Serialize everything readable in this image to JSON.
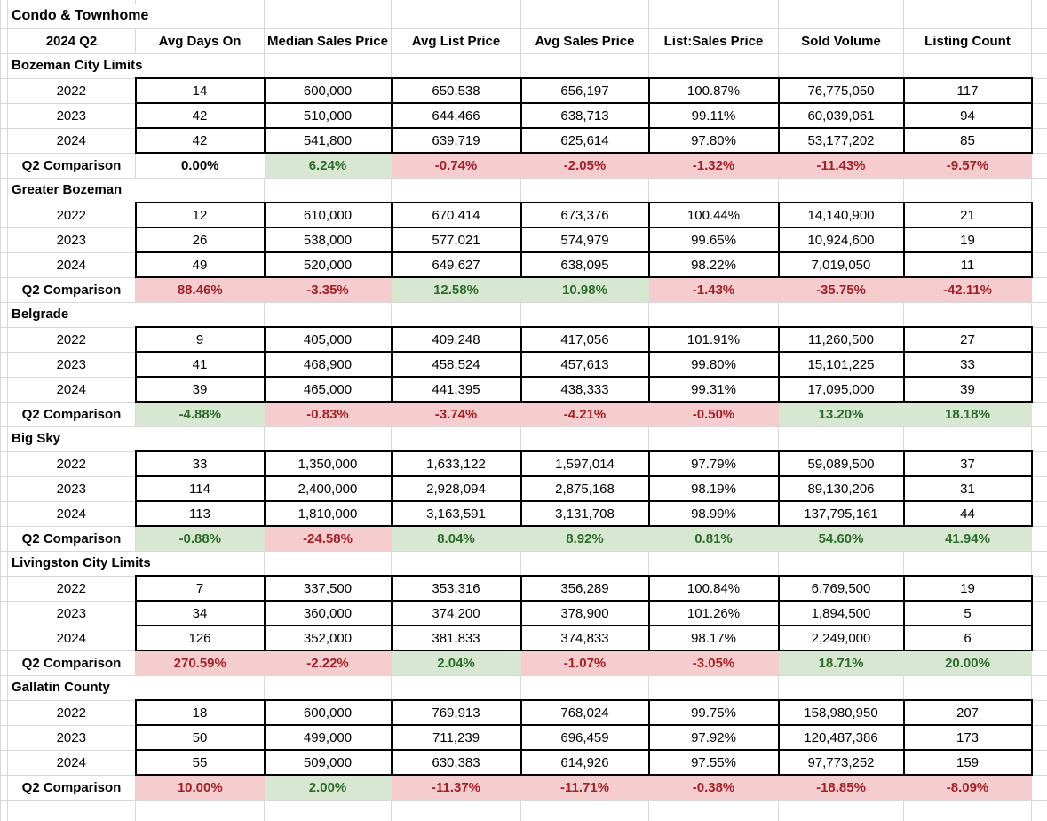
{
  "table": {
    "title": "Condo & Townhome",
    "period_label": "2024 Q2",
    "comparison_label": "Q2 Comparison",
    "columns": [
      "Avg Days On",
      "Median Sales Price",
      "Avg List Price",
      "Avg Sales Price",
      "List:Sales Price",
      "Sold Volume",
      "Listing Count"
    ],
    "colors": {
      "grid": "#d8d8d8",
      "box_border": "#000000",
      "good_bg": "#d7e7d1",
      "good_text": "#2e6b2e",
      "bad_bg": "#f6cdce",
      "bad_text": "#a32126"
    },
    "sections": [
      {
        "name": "Bozeman City Limits",
        "rows": [
          {
            "year": "2022",
            "values": [
              "14",
              "600,000",
              "650,538",
              "656,197",
              "100.87%",
              "76,775,050",
              "117"
            ]
          },
          {
            "year": "2023",
            "values": [
              "42",
              "510,000",
              "644,466",
              "638,713",
              "99.11%",
              "60,039,061",
              "94"
            ]
          },
          {
            "year": "2024",
            "values": [
              "42",
              "541,800",
              "639,719",
              "625,614",
              "97.80%",
              "53,177,202",
              "85"
            ]
          }
        ],
        "comparison": [
          {
            "value": "0.00%",
            "status": "neutral"
          },
          {
            "value": "6.24%",
            "status": "good"
          },
          {
            "value": "-0.74%",
            "status": "bad"
          },
          {
            "value": "-2.05%",
            "status": "bad"
          },
          {
            "value": "-1.32%",
            "status": "bad"
          },
          {
            "value": "-11.43%",
            "status": "bad"
          },
          {
            "value": "-9.57%",
            "status": "bad"
          }
        ]
      },
      {
        "name": "Greater Bozeman",
        "rows": [
          {
            "year": "2022",
            "values": [
              "12",
              "610,000",
              "670,414",
              "673,376",
              "100.44%",
              "14,140,900",
              "21"
            ]
          },
          {
            "year": "2023",
            "values": [
              "26",
              "538,000",
              "577,021",
              "574,979",
              "99.65%",
              "10,924,600",
              "19"
            ]
          },
          {
            "year": "2024",
            "values": [
              "49",
              "520,000",
              "649,627",
              "638,095",
              "98.22%",
              "7,019,050",
              "11"
            ]
          }
        ],
        "comparison": [
          {
            "value": "88.46%",
            "status": "bad"
          },
          {
            "value": "-3.35%",
            "status": "bad"
          },
          {
            "value": "12.58%",
            "status": "good"
          },
          {
            "value": "10.98%",
            "status": "good"
          },
          {
            "value": "-1.43%",
            "status": "bad"
          },
          {
            "value": "-35.75%",
            "status": "bad"
          },
          {
            "value": "-42.11%",
            "status": "bad"
          }
        ]
      },
      {
        "name": "Belgrade",
        "rows": [
          {
            "year": "2022",
            "values": [
              "9",
              "405,000",
              "409,248",
              "417,056",
              "101.91%",
              "11,260,500",
              "27"
            ]
          },
          {
            "year": "2023",
            "values": [
              "41",
              "468,900",
              "458,524",
              "457,613",
              "99.80%",
              "15,101,225",
              "33"
            ]
          },
          {
            "year": "2024",
            "values": [
              "39",
              "465,000",
              "441,395",
              "438,333",
              "99.31%",
              "17,095,000",
              "39"
            ]
          }
        ],
        "comparison": [
          {
            "value": "-4.88%",
            "status": "good"
          },
          {
            "value": "-0.83%",
            "status": "bad"
          },
          {
            "value": "-3.74%",
            "status": "bad"
          },
          {
            "value": "-4.21%",
            "status": "bad"
          },
          {
            "value": "-0.50%",
            "status": "bad"
          },
          {
            "value": "13.20%",
            "status": "good"
          },
          {
            "value": "18.18%",
            "status": "good"
          }
        ]
      },
      {
        "name": "Big Sky",
        "rows": [
          {
            "year": "2022",
            "values": [
              "33",
              "1,350,000",
              "1,633,122",
              "1,597,014",
              "97.79%",
              "59,089,500",
              "37"
            ]
          },
          {
            "year": "2023",
            "values": [
              "114",
              "2,400,000",
              "2,928,094",
              "2,875,168",
              "98.19%",
              "89,130,206",
              "31"
            ]
          },
          {
            "year": "2024",
            "values": [
              "113",
              "1,810,000",
              "3,163,591",
              "3,131,708",
              "98.99%",
              "137,795,161",
              "44"
            ]
          }
        ],
        "comparison": [
          {
            "value": "-0.88%",
            "status": "good"
          },
          {
            "value": "-24.58%",
            "status": "bad"
          },
          {
            "value": "8.04%",
            "status": "good"
          },
          {
            "value": "8.92%",
            "status": "good"
          },
          {
            "value": "0.81%",
            "status": "good"
          },
          {
            "value": "54.60%",
            "status": "good"
          },
          {
            "value": "41.94%",
            "status": "good"
          }
        ]
      },
      {
        "name": "Livingston City Limits",
        "rows": [
          {
            "year": "2022",
            "values": [
              "7",
              "337,500",
              "353,316",
              "356,289",
              "100.84%",
              "6,769,500",
              "19"
            ]
          },
          {
            "year": "2023",
            "values": [
              "34",
              "360,000",
              "374,200",
              "378,900",
              "101.26%",
              "1,894,500",
              "5"
            ]
          },
          {
            "year": "2024",
            "values": [
              "126",
              "352,000",
              "381,833",
              "374,833",
              "98.17%",
              "2,249,000",
              "6"
            ]
          }
        ],
        "comparison": [
          {
            "value": "270.59%",
            "status": "bad"
          },
          {
            "value": "-2.22%",
            "status": "bad"
          },
          {
            "value": "2.04%",
            "status": "good"
          },
          {
            "value": "-1.07%",
            "status": "bad"
          },
          {
            "value": "-3.05%",
            "status": "bad"
          },
          {
            "value": "18.71%",
            "status": "good"
          },
          {
            "value": "20.00%",
            "status": "good"
          }
        ]
      },
      {
        "name": "Gallatin County",
        "rows": [
          {
            "year": "2022",
            "values": [
              "18",
              "600,000",
              "769,913",
              "768,024",
              "99.75%",
              "158,980,950",
              "207"
            ]
          },
          {
            "year": "2023",
            "values": [
              "50",
              "499,000",
              "711,239",
              "696,459",
              "97.92%",
              "120,487,386",
              "173"
            ]
          },
          {
            "year": "2024",
            "values": [
              "55",
              "509,000",
              "630,383",
              "614,926",
              "97.55%",
              "97,773,252",
              "159"
            ]
          }
        ],
        "comparison": [
          {
            "value": "10.00%",
            "status": "bad"
          },
          {
            "value": "2.00%",
            "status": "good"
          },
          {
            "value": "-11.37%",
            "status": "bad"
          },
          {
            "value": "-11.71%",
            "status": "bad"
          },
          {
            "value": "-0.38%",
            "status": "bad"
          },
          {
            "value": "-18.85%",
            "status": "bad"
          },
          {
            "value": "-8.09%",
            "status": "bad"
          }
        ]
      }
    ]
  }
}
